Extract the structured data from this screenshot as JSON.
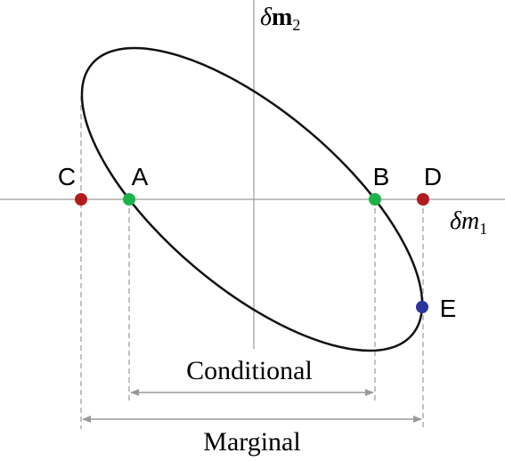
{
  "axes": {
    "vertical": {
      "symbol": "δ",
      "variable": "m",
      "subscript": "2"
    },
    "horizontal": {
      "symbol": "δ",
      "variable": "m",
      "subscript": "1"
    }
  },
  "points": [
    {
      "label": "C"
    },
    {
      "label": "A"
    },
    {
      "label": "B"
    },
    {
      "label": "D"
    },
    {
      "label": "E"
    }
  ],
  "annotations": {
    "conditional": "Conditional",
    "marginal": "Marginal"
  }
}
